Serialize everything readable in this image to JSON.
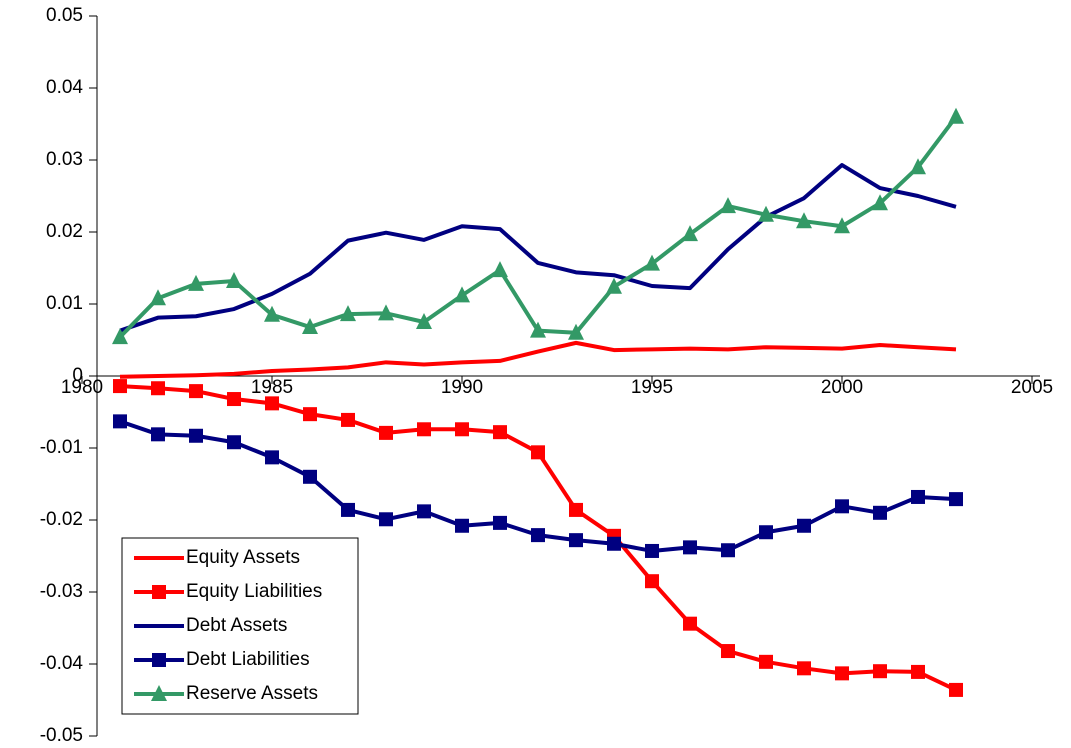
{
  "chart_data": {
    "type": "line",
    "x": [
      1981,
      1982,
      1983,
      1984,
      1985,
      1986,
      1987,
      1988,
      1989,
      1990,
      1991,
      1992,
      1993,
      1994,
      1995,
      1996,
      1997,
      1998,
      1999,
      2000,
      2001,
      2002,
      2003
    ],
    "series": [
      {
        "name": "Equity Assets",
        "color": "#ff0000",
        "marker": "none",
        "values": [
          -0.0001,
          0,
          0.0001,
          0.0003,
          0.0007,
          0.0009,
          0.0012,
          0.0019,
          0.0016,
          0.0019,
          0.0021,
          0.0034,
          0.0046,
          0.0036,
          0.0037,
          0.0038,
          0.0037,
          0.004,
          0.0039,
          0.0038,
          0.0043,
          0.004,
          0.0037
        ]
      },
      {
        "name": "Equity Liabilities",
        "color": "#ff0000",
        "marker": "square",
        "values": [
          -0.0014,
          -0.0017,
          -0.0021,
          -0.0032,
          -0.0038,
          -0.0053,
          -0.0061,
          -0.0079,
          -0.0074,
          -0.0074,
          -0.0078,
          -0.0106,
          -0.0186,
          -0.0222,
          -0.0285,
          -0.0344,
          -0.0382,
          -0.0397,
          -0.0406,
          -0.0413,
          -0.041,
          -0.0411,
          -0.0436
        ]
      },
      {
        "name": "Debt Assets",
        "color": "#000080",
        "marker": "none",
        "values": [
          0.0063,
          0.0081,
          0.0083,
          0.0093,
          0.0114,
          0.0142,
          0.0188,
          0.0199,
          0.0189,
          0.0208,
          0.0204,
          0.0157,
          0.0144,
          0.014,
          0.0125,
          0.0122,
          0.0176,
          0.0221,
          0.0247,
          0.0293,
          0.0261,
          0.025,
          0.0235
        ]
      },
      {
        "name": "Debt Liabilities",
        "color": "#000080",
        "marker": "square",
        "values": [
          -0.0063,
          -0.0081,
          -0.0083,
          -0.0092,
          -0.0113,
          -0.014,
          -0.0186,
          -0.0199,
          -0.0188,
          -0.0208,
          -0.0204,
          -0.0221,
          -0.0228,
          -0.0233,
          -0.0243,
          -0.0238,
          -0.0242,
          -0.0217,
          -0.0208,
          -0.0181,
          -0.019,
          -0.0168,
          -0.0171
        ]
      },
      {
        "name": "Reserve Assets",
        "color": "#339966",
        "marker": "triangle",
        "values": [
          0.0054,
          0.0108,
          0.0128,
          0.0132,
          0.0085,
          0.0068,
          0.0086,
          0.0087,
          0.0075,
          0.0112,
          0.0147,
          0.0063,
          0.006,
          0.0124,
          0.0156,
          0.0197,
          0.0236,
          0.0224,
          0.0215,
          0.0208,
          0.024,
          0.029,
          0.036
        ]
      }
    ],
    "xlim": [
      1980,
      2005
    ],
    "xticks": [
      1980,
      1985,
      1990,
      1995,
      2000,
      2005
    ],
    "ylim": [
      -0.05,
      0.05
    ],
    "yticks": [
      -0.05,
      -0.04,
      -0.03,
      -0.02,
      -0.01,
      0,
      0.01,
      0.02,
      0.03,
      0.04,
      0.05
    ],
    "grid": false,
    "legend": "lower left"
  }
}
